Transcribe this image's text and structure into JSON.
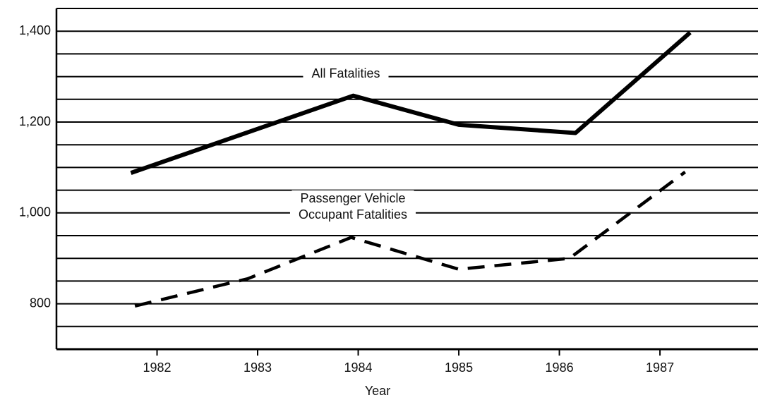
{
  "chart_data": {
    "type": "line",
    "x_label": "Year",
    "xlim": [
      1981,
      1988
    ],
    "xticks": [
      1982,
      1983,
      1984,
      1985,
      1986,
      1987
    ],
    "ylim": [
      700,
      1450
    ],
    "yticks": [
      {
        "value": 800,
        "label": "800"
      },
      {
        "value": 1000,
        "label": "1,000"
      },
      {
        "value": 1200,
        "label": "1,200"
      },
      {
        "value": 1400,
        "label": "1,400"
      }
    ],
    "minor_yticks": [
      750,
      850,
      900,
      950,
      1050,
      1100,
      1150,
      1250,
      1300,
      1350
    ],
    "grid": true,
    "series": [
      {
        "label": [
          "All Fatalities"
        ],
        "color": "#000000",
        "dash": false,
        "x": [
          1981.74,
          1983.95,
          1985.0,
          1986.16,
          1987.3
        ],
        "values": [
          1088,
          1258,
          1194,
          1176,
          1397
        ]
      },
      {
        "label": [
          "Passenger Vehicle",
          "Occupant Fatalities"
        ],
        "color": "#000000",
        "dash": true,
        "x": [
          1981.78,
          1982.9,
          1983.93,
          1985.0,
          1986.1,
          1987.25
        ],
        "values": [
          795,
          855,
          946,
          876,
          900,
          1090
        ]
      }
    ]
  }
}
